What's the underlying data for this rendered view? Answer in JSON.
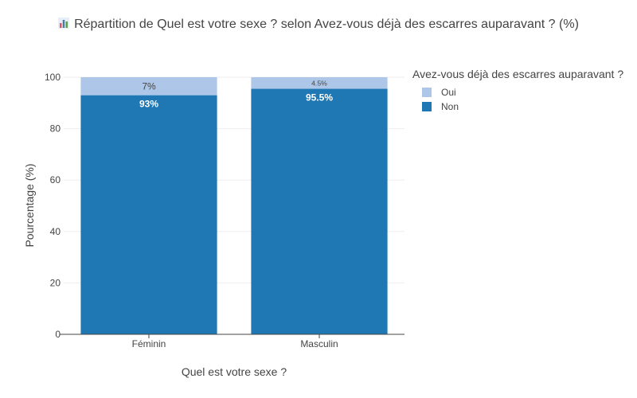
{
  "title": "Répartition de Quel est votre sexe ? selon Avez-vous déjà des escarres auparavant ? (%)",
  "title_icon": "bar-chart-icon",
  "colors": {
    "oui": "#aec7e8",
    "non": "#1f77b4",
    "grid": "#eeeeee",
    "axis": "#444444"
  },
  "legend": {
    "title": "Avez-vous déjà des escarres auparavant ?",
    "items": [
      "Oui",
      "Non"
    ]
  },
  "chart_data": {
    "type": "bar",
    "stacked": true,
    "categories": [
      "Féminin",
      "Masculin"
    ],
    "series": [
      {
        "name": "Non",
        "values": [
          93,
          95.5
        ],
        "labels": [
          "93%",
          "95.5%"
        ]
      },
      {
        "name": "Oui",
        "values": [
          7,
          4.5
        ],
        "labels": [
          "7%",
          "4.5%"
        ]
      }
    ],
    "xlabel": "Quel est votre sexe ?",
    "ylabel": "Pourcentage (%)",
    "ylim": [
      0,
      100
    ],
    "yticks": [
      "0",
      "20",
      "40",
      "60",
      "80",
      "100"
    ],
    "grid": true,
    "legend_position": "top-right"
  }
}
